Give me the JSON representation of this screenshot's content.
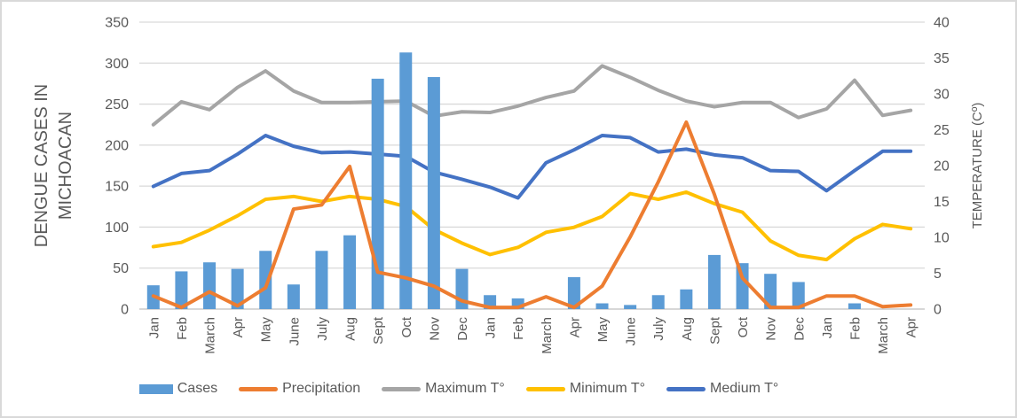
{
  "chart_data": {
    "type": "combo-bar-line",
    "left_axis": {
      "label": "DENGUE CASES IN MICHOACAN",
      "min": 0,
      "max": 350,
      "step": 50,
      "tick_labels": [
        "350",
        "300",
        "250",
        "200",
        "150",
        "100",
        "50",
        "0"
      ]
    },
    "right_axis": {
      "label": "TEMPERATURE (Cº)",
      "min": 0,
      "max": 40,
      "step": 5,
      "tick_labels": [
        "40",
        "35",
        "30",
        "25",
        "20",
        "15",
        "10",
        "5",
        "0"
      ]
    },
    "grid": "horizontal",
    "legend_position": "bottom",
    "categories": [
      "Jan",
      "Feb",
      "March",
      "Apr",
      "May",
      "June",
      "July",
      "Aug",
      "Sept",
      "Oct",
      "Nov",
      "Dec",
      "Jan",
      "Feb",
      "March",
      "Apr",
      "May",
      "June",
      "July",
      "Aug",
      "Sept",
      "Oct",
      "Nov",
      "Dec",
      "Jan",
      "Feb",
      "March",
      "Apr"
    ],
    "series": [
      {
        "name": "Cases",
        "type": "bar",
        "axis": "left",
        "color": "#5B9BD5",
        "values": [
          29,
          46,
          57,
          49,
          71,
          30,
          71,
          90,
          281,
          313,
          283,
          49,
          17,
          13,
          0,
          39,
          7,
          5,
          17,
          24,
          66,
          56,
          43,
          33,
          0,
          7,
          0,
          0
        ]
      },
      {
        "name": "Precipitation",
        "type": "line",
        "axis": "left",
        "color": "#ED7D31",
        "values": [
          16,
          2,
          21,
          4,
          26,
          122,
          127,
          174,
          45,
          38,
          28,
          10,
          2,
          2,
          15,
          2,
          28,
          88,
          155,
          228,
          140,
          38,
          2,
          2,
          16,
          16,
          3,
          5
        ]
      },
      {
        "name": "Maximum T°",
        "type": "line",
        "axis": "right",
        "color": "#A5A5A5",
        "values": [
          25.7,
          28.9,
          27.8,
          30.9,
          33.2,
          30.4,
          28.8,
          28.8,
          28.9,
          29.0,
          26.9,
          27.5,
          27.4,
          28.3,
          29.5,
          30.4,
          33.9,
          32.3,
          30.5,
          29.0,
          28.2,
          28.8,
          28.8,
          26.7,
          27.9,
          31.9,
          27.0,
          27.7
        ]
      },
      {
        "name": "Minimum T°",
        "type": "line",
        "axis": "right",
        "color": "#FFC000",
        "values": [
          8.7,
          9.3,
          11.0,
          13.0,
          15.3,
          15.7,
          15.0,
          15.7,
          15.3,
          14.3,
          11.1,
          9.2,
          7.6,
          8.6,
          10.7,
          11.4,
          12.9,
          16.1,
          15.3,
          16.3,
          14.7,
          13.5,
          9.5,
          7.5,
          6.9,
          9.8,
          11.8,
          11.2
        ]
      },
      {
        "name": "Medium T°",
        "type": "line",
        "axis": "right",
        "color": "#4472C4",
        "values": [
          17.1,
          18.9,
          19.3,
          21.6,
          24.2,
          22.7,
          21.8,
          21.9,
          21.6,
          21.3,
          19.1,
          18.1,
          17.0,
          15.5,
          20.4,
          22.2,
          24.2,
          23.9,
          21.9,
          22.3,
          21.5,
          21.1,
          19.3,
          19.2,
          16.5,
          19.3,
          22.0,
          22.0
        ]
      }
    ],
    "colors": {
      "gridline": "#D9D9D9",
      "axis_line": "#BFBFBF",
      "text": "#595959"
    }
  }
}
